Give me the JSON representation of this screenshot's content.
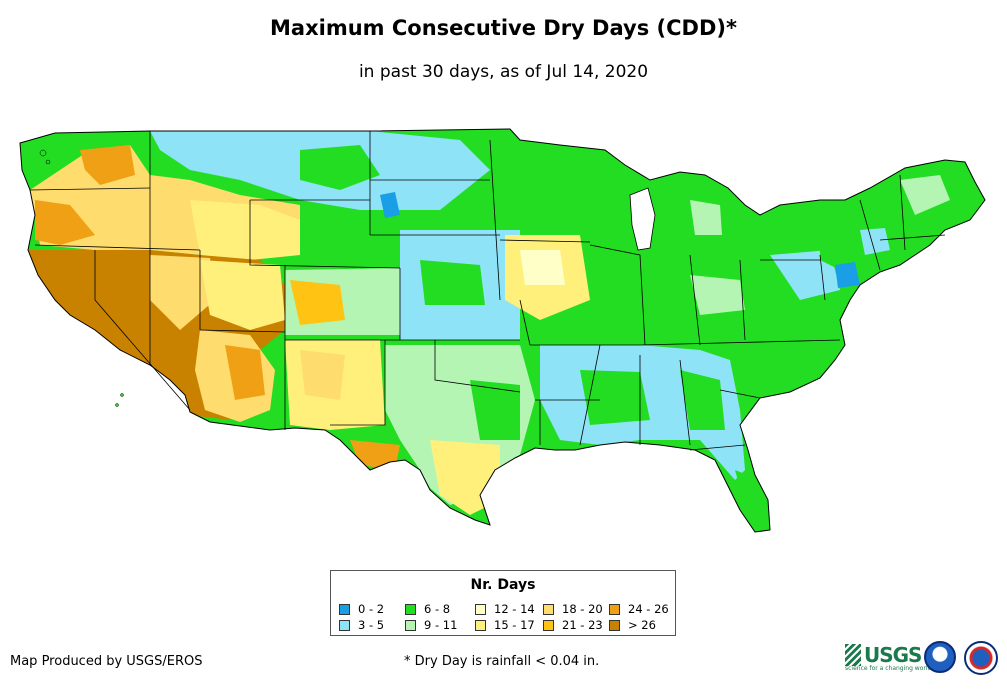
{
  "title": "Maximum Consecutive Dry Days (CDD)*",
  "subtitle": "in past 30 days, as of Jul 14, 2020",
  "legend": {
    "title": "Nr. Days",
    "items": [
      {
        "label": "0 - 2",
        "color": "#1a9ee6"
      },
      {
        "label": "3 - 5",
        "color": "#8fe3f7"
      },
      {
        "label": "6 - 8",
        "color": "#1ee01e"
      },
      {
        "label": "9 - 11",
        "color": "#b4f5b4"
      },
      {
        "label": "12 - 14",
        "color": "#ffffc8"
      },
      {
        "label": "15 - 17",
        "color": "#fff07c"
      },
      {
        "label": "18 - 20",
        "color": "#ffdc6e"
      },
      {
        "label": "21 - 23",
        "color": "#ffc314"
      },
      {
        "label": "24 - 26",
        "color": "#f0a014"
      },
      {
        "label": "> 26",
        "color": "#c88200"
      }
    ]
  },
  "credit": "Map Produced by USGS/EROS",
  "footnote": "* Dry Day is rainfall < 0.04 in.",
  "logos": {
    "usgs": "USGS",
    "usgs_tagline": "science for a changing world",
    "noaa": "noaa",
    "nws": "National Weather Service"
  }
}
